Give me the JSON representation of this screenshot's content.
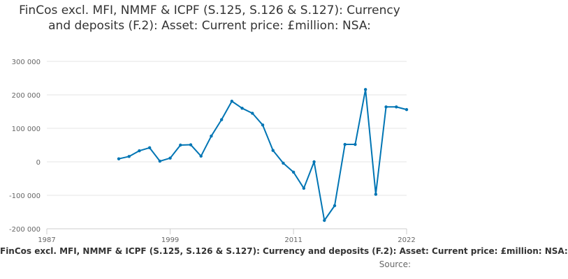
{
  "chart_data": {
    "type": "line",
    "title": "FinCos excl. MFI, NMMF & ICPF (S.125, S.126 & S.127): Currency and deposits (F.2): Asset: Current price: £million: NSA:",
    "xlabel": "",
    "ylabel": "",
    "xlim": [
      1987,
      2022
    ],
    "ylim": [
      -200000,
      300000
    ],
    "x_ticks": [
      1987,
      1999,
      2011,
      2022
    ],
    "x_tick_labels": [
      "1987",
      "1999",
      "2011",
      "2022"
    ],
    "y_ticks": [
      -200000,
      -100000,
      0,
      100000,
      200000,
      300000
    ],
    "y_tick_labels": [
      "-200 000",
      "-100 000",
      "0",
      "100 000",
      "200 000",
      "300 000"
    ],
    "grid": true,
    "color": "#0075b4",
    "series": [
      {
        "name": "FinCos excl. MFI, NMMF & ICPF (S.125, S.126 & S.127): Currency and deposits (F.2): Asset: Current price: £million: NSA:",
        "x": [
          1994,
          1995,
          1996,
          1997,
          1998,
          1999,
          2000,
          2001,
          2002,
          2003,
          2004,
          2005,
          2006,
          2007,
          2008,
          2009,
          2010,
          2011,
          2012,
          2013,
          2014,
          2015,
          2016,
          2017,
          2018,
          2019,
          2020,
          2021,
          2022
        ],
        "values": [
          9000,
          16000,
          33000,
          42000,
          2000,
          11000,
          50000,
          51000,
          17000,
          77000,
          126000,
          181000,
          160000,
          145000,
          110000,
          34000,
          -4000,
          -31000,
          -79000,
          0,
          -175000,
          -131000,
          52000,
          52000,
          216000,
          -97000,
          164000,
          164000,
          156000
        ]
      }
    ],
    "legend": "bottom",
    "source_label": "Source:"
  }
}
